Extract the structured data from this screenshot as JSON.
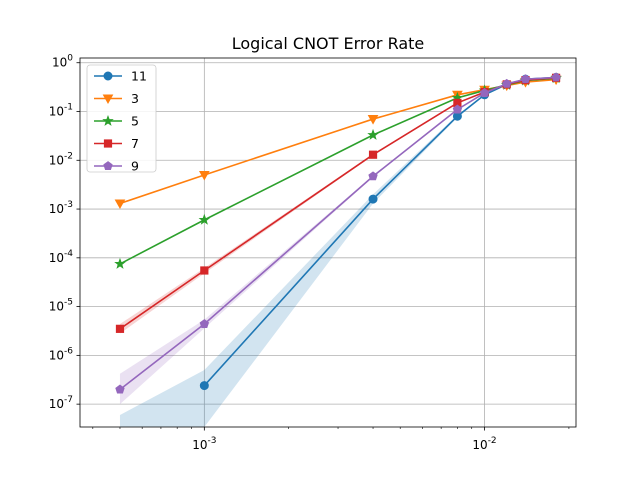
{
  "chart_data": {
    "type": "line",
    "title": "Logical CNOT Error Rate",
    "xlabel": "",
    "ylabel": "",
    "xscale": "log",
    "yscale": "log",
    "xlim": [
      0.00036,
      0.0212
    ],
    "ylim": [
      3.4e-08,
      1.25
    ],
    "grid": true,
    "legend_position": "top-left",
    "x_ticks": [
      {
        "value": 0.001,
        "base": "10",
        "exp": "-3"
      },
      {
        "value": 0.01,
        "base": "10",
        "exp": "-2"
      }
    ],
    "y_ticks": [
      {
        "value": 1e-07,
        "base": "10",
        "exp": "-7"
      },
      {
        "value": 1e-06,
        "base": "10",
        "exp": "-6"
      },
      {
        "value": 1e-05,
        "base": "10",
        "exp": "-5"
      },
      {
        "value": 0.0001,
        "base": "10",
        "exp": "-4"
      },
      {
        "value": 0.001,
        "base": "10",
        "exp": "-3"
      },
      {
        "value": 0.01,
        "base": "10",
        "exp": "-2"
      },
      {
        "value": 0.1,
        "base": "10",
        "exp": "-1"
      },
      {
        "value": 1,
        "base": "10",
        "exp": "0"
      }
    ],
    "series": [
      {
        "name": "11",
        "color": "#1f77b4",
        "marker": "circle",
        "x": [
          0.001,
          0.004,
          0.008,
          0.01,
          0.012,
          0.014,
          0.018
        ],
        "y": [
          2.4e-07,
          0.0016,
          0.08,
          0.22,
          0.36,
          0.46,
          0.5
        ],
        "band": {
          "x": [
            0.0005,
            0.001,
            0.004,
            0.008,
            0.01,
            0.012,
            0.014,
            0.018
          ],
          "lower": [
            3.4e-08,
            3.4e-08,
            0.0013,
            0.075,
            0.21,
            0.35,
            0.45,
            0.49
          ],
          "upper": [
            6e-08,
            5e-07,
            0.002,
            0.085,
            0.23,
            0.37,
            0.47,
            0.51
          ]
        }
      },
      {
        "name": "3",
        "color": "#ff7f0e",
        "marker": "triangle-down",
        "x": [
          0.0005,
          0.001,
          0.004,
          0.008,
          0.01,
          0.012,
          0.014,
          0.018
        ],
        "y": [
          0.0013,
          0.005,
          0.07,
          0.22,
          0.28,
          0.34,
          0.4,
          0.45
        ]
      },
      {
        "name": "5",
        "color": "#2ca02c",
        "marker": "star",
        "x": [
          0.0005,
          0.001,
          0.004,
          0.008,
          0.01,
          0.012,
          0.014,
          0.018
        ],
        "y": [
          7.5e-05,
          0.0006,
          0.033,
          0.19,
          0.27,
          0.35,
          0.43,
          0.48
        ]
      },
      {
        "name": "7",
        "color": "#d62728",
        "marker": "square",
        "x": [
          0.0005,
          0.001,
          0.004,
          0.008,
          0.01,
          0.012,
          0.014,
          0.018
        ],
        "y": [
          3.5e-06,
          5.5e-05,
          0.013,
          0.15,
          0.25,
          0.36,
          0.44,
          0.49
        ],
        "band": {
          "x": [
            0.0005,
            0.001,
            0.004,
            0.008,
            0.01,
            0.012,
            0.014,
            0.018
          ],
          "lower": [
            2.8e-06,
            4.8e-05,
            0.0125,
            0.145,
            0.245,
            0.355,
            0.435,
            0.485
          ],
          "upper": [
            4.4e-06,
            6.2e-05,
            0.0135,
            0.155,
            0.255,
            0.365,
            0.445,
            0.495
          ]
        }
      },
      {
        "name": "9",
        "color": "#9467bd",
        "marker": "pentagon",
        "x": [
          0.0005,
          0.001,
          0.004,
          0.008,
          0.01,
          0.012,
          0.014,
          0.018
        ],
        "y": [
          2e-07,
          4.4e-06,
          0.0047,
          0.11,
          0.24,
          0.37,
          0.46,
          0.5
        ],
        "band": {
          "x": [
            0.0005,
            0.001,
            0.004,
            0.008,
            0.01,
            0.012,
            0.014,
            0.018
          ],
          "lower": [
            1e-07,
            3.6e-06,
            0.0045,
            0.105,
            0.235,
            0.365,
            0.455,
            0.495
          ],
          "upper": [
            4.2e-07,
            5.4e-06,
            0.0049,
            0.115,
            0.245,
            0.375,
            0.465,
            0.505
          ]
        }
      }
    ]
  }
}
